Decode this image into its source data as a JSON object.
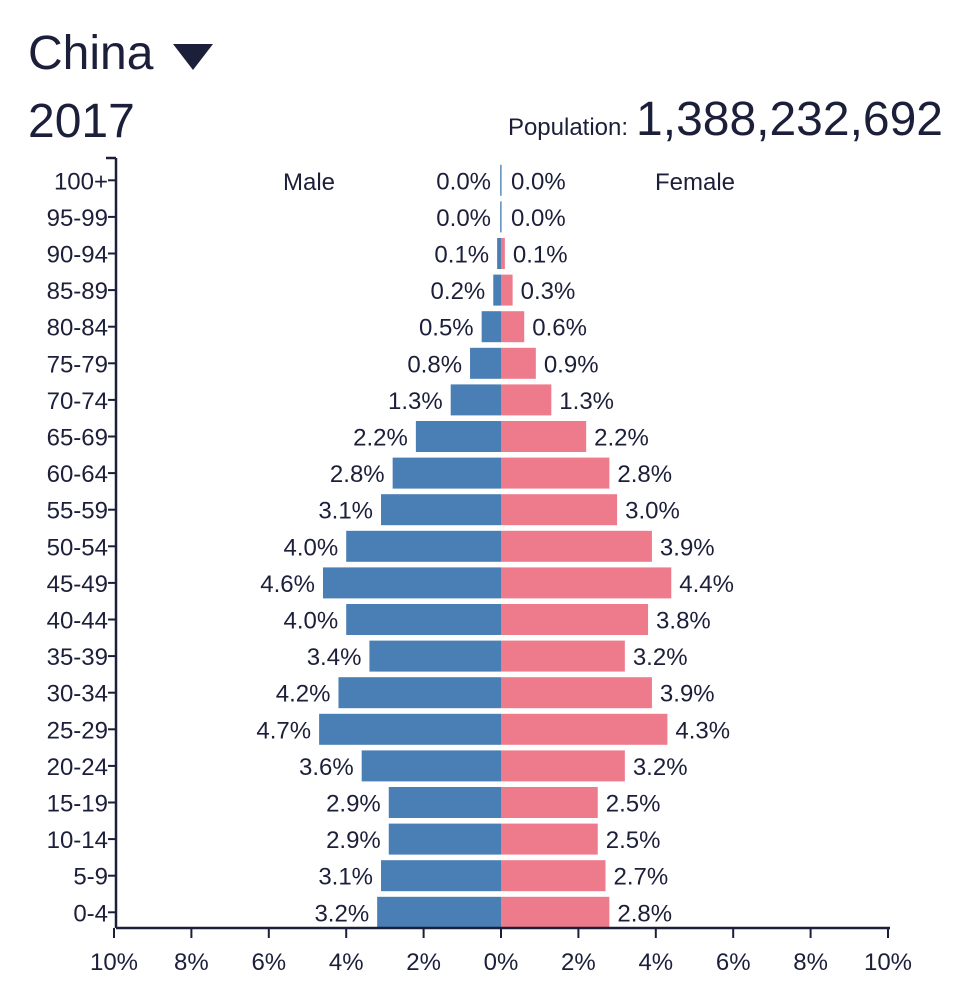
{
  "header": {
    "country": "China",
    "year": "2017",
    "population_label": "Population:",
    "population_value": "1,388,232,692"
  },
  "chart_data": {
    "type": "bar",
    "orientation": "horizontal",
    "categories": [
      "100+",
      "95-99",
      "90-94",
      "85-89",
      "80-84",
      "75-79",
      "70-74",
      "65-69",
      "60-64",
      "55-59",
      "50-54",
      "45-49",
      "40-44",
      "35-39",
      "30-34",
      "25-29",
      "20-24",
      "15-19",
      "10-14",
      "5-9",
      "0-4"
    ],
    "series": [
      {
        "name": "Male",
        "color": "#4a7fb5",
        "values": [
          0.0,
          0.0,
          0.1,
          0.2,
          0.5,
          0.8,
          1.3,
          2.2,
          2.8,
          3.1,
          4.0,
          4.6,
          4.0,
          3.4,
          4.2,
          4.7,
          3.6,
          2.9,
          2.9,
          3.1,
          3.2
        ],
        "labels": [
          "0.0%",
          "0.0%",
          "0.1%",
          "0.2%",
          "0.5%",
          "0.8%",
          "1.3%",
          "2.2%",
          "2.8%",
          "3.1%",
          "4.0%",
          "4.6%",
          "4.0%",
          "3.4%",
          "4.2%",
          "4.7%",
          "3.6%",
          "2.9%",
          "2.9%",
          "3.1%",
          "3.2%"
        ]
      },
      {
        "name": "Female",
        "color": "#ee7b8c",
        "values": [
          0.0,
          0.0,
          0.1,
          0.3,
          0.6,
          0.9,
          1.3,
          2.2,
          2.8,
          3.0,
          3.9,
          4.4,
          3.8,
          3.2,
          3.9,
          4.3,
          3.2,
          2.5,
          2.5,
          2.7,
          2.8
        ],
        "labels": [
          "0.0%",
          "0.0%",
          "0.1%",
          "0.3%",
          "0.6%",
          "0.9%",
          "1.3%",
          "2.2%",
          "2.8%",
          "3.0%",
          "3.9%",
          "4.4%",
          "3.8%",
          "3.2%",
          "3.9%",
          "4.3%",
          "3.2%",
          "2.5%",
          "2.5%",
          "2.7%",
          "2.8%"
        ]
      }
    ],
    "xlim": [
      -10,
      10
    ],
    "xticks": [
      -10,
      -8,
      -6,
      -4,
      -2,
      0,
      2,
      4,
      6,
      8,
      10
    ],
    "xtick_labels": [
      "10%",
      "8%",
      "6%",
      "4%",
      "2%",
      "0%",
      "2%",
      "4%",
      "6%",
      "8%",
      "10%"
    ],
    "grid": false
  }
}
